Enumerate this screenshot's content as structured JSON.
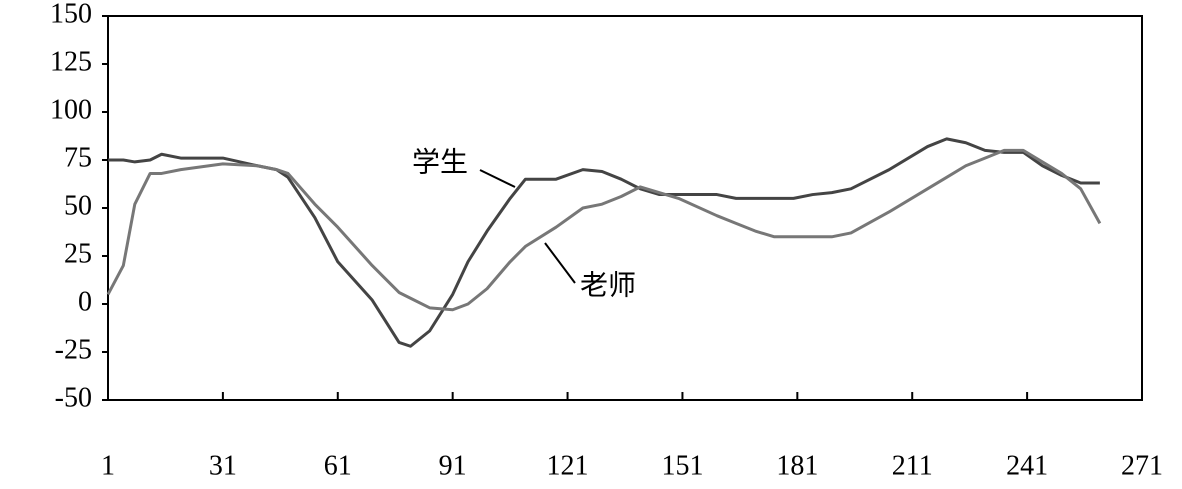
{
  "chart_data": {
    "type": "line",
    "x": [
      1,
      5,
      8,
      12,
      15,
      20,
      31,
      40,
      45,
      48,
      55,
      61,
      70,
      77,
      80,
      85,
      91,
      95,
      100,
      106,
      110,
      118,
      125,
      130,
      135,
      140,
      145,
      150,
      160,
      165,
      170,
      175,
      180,
      185,
      190,
      195,
      205,
      215,
      220,
      225,
      230,
      235,
      240,
      245,
      250,
      255,
      260
    ],
    "series": [
      {
        "name": "学生",
        "color": "#444444",
        "values": [
          75,
          75,
          74,
          75,
          78,
          76,
          76,
          72,
          70,
          66,
          45,
          22,
          2,
          -20,
          -22,
          -14,
          5,
          22,
          38,
          55,
          65,
          65,
          70,
          69,
          65,
          60,
          57,
          57,
          57,
          55,
          55,
          55,
          55,
          57,
          58,
          60,
          70,
          82,
          86,
          84,
          80,
          79,
          79,
          72,
          67,
          63,
          63
        ]
      },
      {
        "name": "老师",
        "color": "#777777",
        "values": [
          5,
          20,
          52,
          68,
          68,
          70,
          73,
          72,
          70,
          68,
          52,
          40,
          20,
          6,
          3,
          -2,
          -3,
          0,
          8,
          22,
          30,
          40,
          50,
          52,
          56,
          61,
          58,
          55,
          46,
          42,
          38,
          35,
          35,
          35,
          35,
          37,
          48,
          60,
          66,
          72,
          76,
          80,
          80,
          74,
          68,
          60,
          42
        ]
      }
    ],
    "xlim": [
      1,
      271
    ],
    "xticks": [
      1,
      31,
      61,
      91,
      121,
      151,
      181,
      211,
      241,
      271
    ],
    "ylim": [
      -50,
      150
    ],
    "yticks": [
      -50,
      -25,
      0,
      25,
      50,
      75,
      100,
      125,
      150
    ]
  }
}
